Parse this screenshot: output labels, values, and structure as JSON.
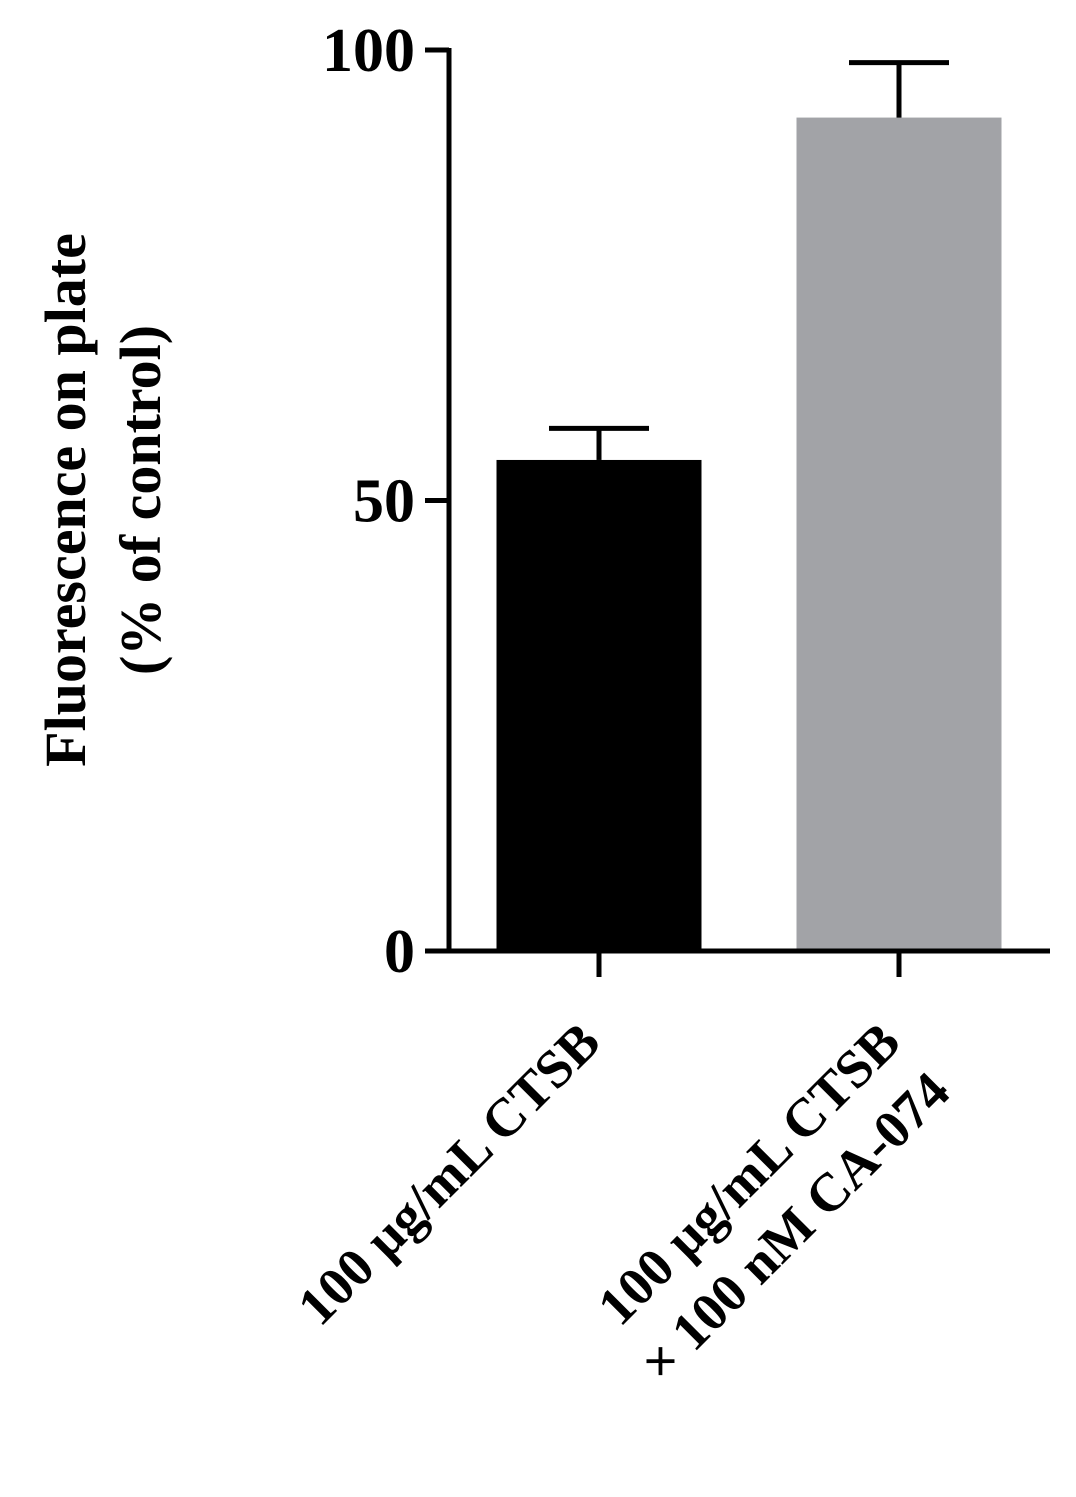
{
  "chart_data": {
    "type": "bar",
    "title": "",
    "xlabel": "",
    "ylabel_lines": [
      "Fluorescence on plate",
      "(% of control)"
    ],
    "ylim": [
      0,
      100
    ],
    "yticks": [
      "0",
      "50",
      "100"
    ],
    "ytick_values": [
      0,
      50,
      100
    ],
    "grid": false,
    "legend": "none",
    "categories": [
      {
        "lines": [
          "100 µg/mL CTSB"
        ]
      },
      {
        "lines": [
          "100 µg/mL CTSB",
          "× 100 nM CA-074"
        ]
      }
    ],
    "values": [
      54.5,
      92.5
    ],
    "errors": [
      3.5,
      6.1
    ],
    "colors": [
      "#000000",
      "#a2a3a7"
    ]
  }
}
